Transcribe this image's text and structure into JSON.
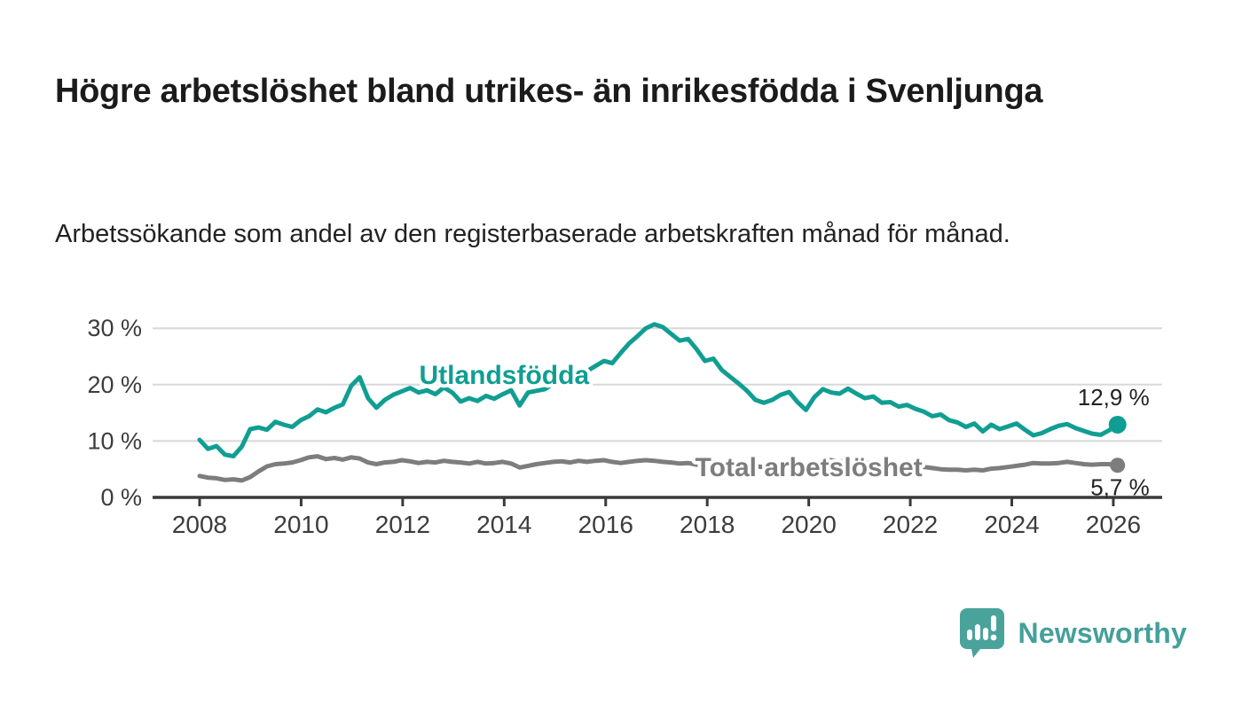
{
  "title": "Högre arbetslöshet bland utrikes- än inrikesfödda i Svenljunga",
  "subtitle": "Arbetssökande som andel av den registerbaserade arbetskraften månad för månad.",
  "footer": {
    "brand": "Newsworthy"
  },
  "colors": {
    "foreign_born_line": "#119e92",
    "total_line": "#7d7d7d",
    "axis": "#3a3a3a",
    "gridline": "#d8d8d8",
    "tick_text": "#3c3c3c",
    "title_text": "#1b1b1b",
    "brand_teal": "#44a09a"
  },
  "chart_data": {
    "type": "line",
    "title": "Högre arbetslöshet bland utrikes- än inrikesfödda i Svenljunga",
    "subtitle": "Arbetssökande som andel av den registerbaserade arbetskraften månad för månad.",
    "xlabel": "",
    "ylabel": "",
    "x_unit": "year (monthly observations)",
    "y_unit": "percent",
    "x_start": 2008.0,
    "x_end": 2026.083,
    "xlim": [
      2007.1,
      2027.0
    ],
    "ylim": [
      0,
      32
    ],
    "grid": "horizontal-only",
    "legend_position": "inline-labels",
    "x_ticks": [
      {
        "value": 2008,
        "label": "2008"
      },
      {
        "value": 2010,
        "label": "2010"
      },
      {
        "value": 2012,
        "label": "2012"
      },
      {
        "value": 2014,
        "label": "2014"
      },
      {
        "value": 2016,
        "label": "2016"
      },
      {
        "value": 2018,
        "label": "2018"
      },
      {
        "value": 2020,
        "label": "2020"
      },
      {
        "value": 2022,
        "label": "2022"
      },
      {
        "value": 2024,
        "label": "2024"
      },
      {
        "value": 2026,
        "label": "2026"
      }
    ],
    "y_ticks": [
      {
        "value": 0,
        "label": "0 %"
      },
      {
        "value": 10,
        "label": "10 %"
      },
      {
        "value": 20,
        "label": "20 %"
      },
      {
        "value": 30,
        "label": "30 %"
      }
    ],
    "series": [
      {
        "name": "Utlandsfödda",
        "color": "#119e92",
        "line_width": 5,
        "end_value": 12.9,
        "end_label": "12,9 %",
        "label_anchor": {
          "x": 2014.0,
          "y": 20.1
        },
        "values": [
          10.2,
          8.6,
          9.1,
          7.6,
          7.3,
          9.0,
          12.1,
          12.4,
          12.0,
          13.4,
          12.9,
          12.5,
          13.7,
          14.4,
          15.6,
          15.1,
          15.9,
          16.5,
          19.8,
          21.3,
          17.6,
          15.9,
          17.3,
          18.2,
          18.8,
          19.4,
          18.6,
          19.0,
          18.3,
          19.5,
          18.6,
          17.0,
          17.6,
          17.1,
          18.0,
          17.5,
          18.3,
          19.0,
          16.3,
          18.6,
          18.9,
          19.2,
          20.2,
          20.8,
          21.1,
          20.6,
          22.4,
          23.3,
          24.2,
          23.8,
          25.6,
          27.3,
          28.6,
          30.0,
          30.7,
          30.2,
          29.0,
          27.8,
          28.1,
          26.3,
          24.2,
          24.6,
          22.6,
          21.4,
          20.2,
          18.9,
          17.3,
          16.8,
          17.3,
          18.2,
          18.7,
          16.9,
          15.5,
          17.8,
          19.2,
          18.6,
          18.4,
          19.3,
          18.4,
          17.6,
          17.9,
          16.8,
          16.9,
          16.1,
          16.4,
          15.7,
          15.2,
          14.4,
          14.7,
          13.7,
          13.3,
          12.5,
          13.1,
          11.7,
          12.9,
          12.1,
          12.6,
          13.1,
          12.0,
          11.0,
          11.4,
          12.1,
          12.7,
          13.0,
          12.3,
          11.8,
          11.3,
          11.1,
          11.9,
          12.9
        ]
      },
      {
        "name": "Total arbetslöshet",
        "color": "#7d7d7d",
        "line_width": 5,
        "end_value": 5.7,
        "end_label": "5,7 %",
        "label_anchor": {
          "x": 2020.0,
          "y": 3.8
        },
        "values": [
          3.8,
          3.5,
          3.4,
          3.1,
          3.2,
          3.0,
          3.6,
          4.6,
          5.5,
          5.9,
          6.0,
          6.2,
          6.6,
          7.1,
          7.3,
          6.8,
          7.0,
          6.7,
          7.1,
          6.9,
          6.2,
          5.9,
          6.2,
          6.3,
          6.6,
          6.4,
          6.1,
          6.3,
          6.2,
          6.5,
          6.3,
          6.2,
          6.0,
          6.3,
          6.0,
          6.1,
          6.3,
          6.0,
          5.3,
          5.6,
          5.9,
          6.1,
          6.3,
          6.4,
          6.2,
          6.5,
          6.3,
          6.5,
          6.6,
          6.3,
          6.1,
          6.3,
          6.5,
          6.6,
          6.5,
          6.3,
          6.2,
          6.0,
          6.1,
          5.8,
          6.0,
          5.8,
          5.7,
          5.8,
          5.6,
          5.7,
          5.5,
          5.4,
          5.5,
          5.6,
          5.4,
          5.5,
          5.6,
          6.0,
          6.5,
          6.6,
          6.4,
          6.3,
          6.4,
          6.1,
          6.2,
          5.9,
          5.7,
          5.7,
          5.6,
          5.4,
          5.4,
          5.2,
          5.0,
          4.9,
          4.9,
          4.8,
          4.9,
          4.8,
          5.1,
          5.2,
          5.4,
          5.6,
          5.8,
          6.1,
          6.0,
          6.0,
          6.1,
          6.3,
          6.1,
          5.9,
          5.8,
          5.9,
          5.9,
          5.7
        ]
      }
    ]
  }
}
